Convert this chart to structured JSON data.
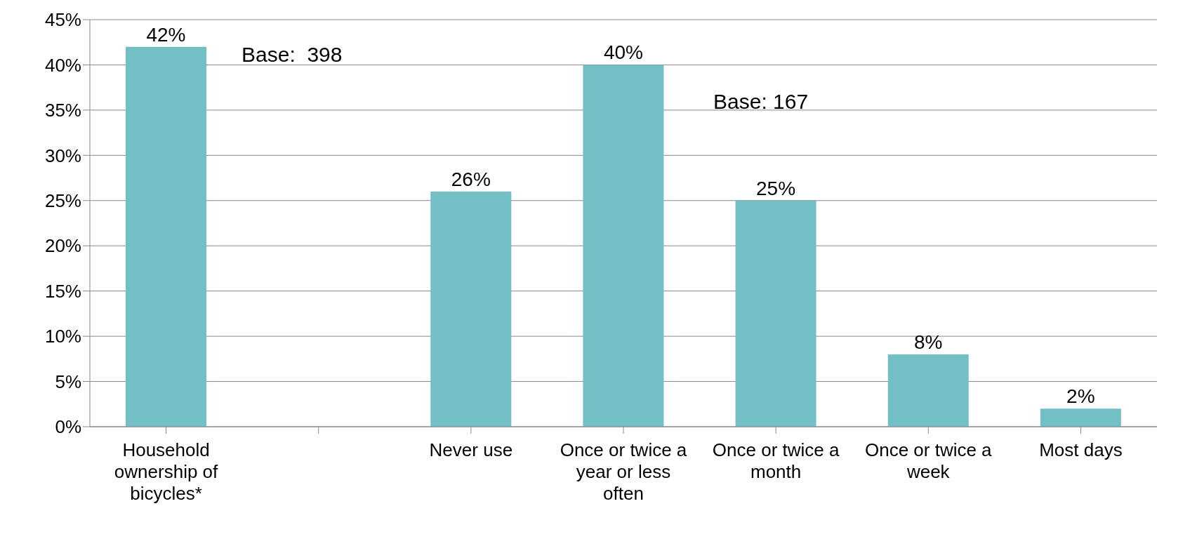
{
  "chart_data": {
    "type": "bar",
    "categories": [
      "Household ownership of bicycles*",
      null,
      "Never use",
      "Once or twice a year or less often",
      "Once or twice a month",
      "Once or twice a week",
      "Most days"
    ],
    "values": [
      42,
      null,
      26,
      40,
      25,
      8,
      2
    ],
    "value_labels": [
      "42%",
      null,
      "26%",
      "40%",
      "25%",
      "8%",
      "2%"
    ],
    "color": "#72bfc5",
    "ylim": [
      0,
      45
    ],
    "yticks": [
      {
        "value": 0,
        "label": "0%"
      },
      {
        "value": 5,
        "label": "5%"
      },
      {
        "value": 10,
        "label": "10%"
      },
      {
        "value": 15,
        "label": "15%"
      },
      {
        "value": 20,
        "label": "20%"
      },
      {
        "value": 25,
        "label": "25%"
      },
      {
        "value": 30,
        "label": "30%"
      },
      {
        "value": 35,
        "label": "35%"
      },
      {
        "value": 40,
        "label": "40%"
      },
      {
        "value": 45,
        "label": "45%"
      }
    ],
    "grid": "y",
    "annotations": [
      "Base:  398",
      "Base: 167"
    ]
  }
}
